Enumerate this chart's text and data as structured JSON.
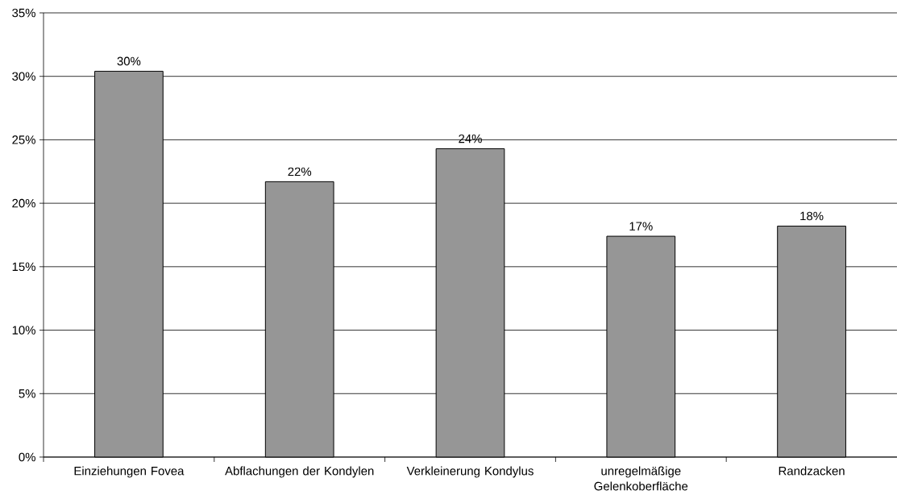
{
  "chart_data": {
    "type": "bar",
    "categories": [
      "Einziehungen Fovea",
      "Abflachungen der Kondylen",
      "Verkleinerung Kondylus",
      "unregelmäßige Gelenkoberfläche",
      "Randzacken"
    ],
    "values": [
      30.4,
      21.7,
      24.3,
      17.4,
      18.2
    ],
    "value_labels": [
      "30%",
      "22%",
      "24%",
      "17%",
      "18%"
    ],
    "color": "#969696",
    "ylim": [
      0,
      35
    ],
    "yticks": [
      {
        "value": 0,
        "label": "0%"
      },
      {
        "value": 5,
        "label": "5%"
      },
      {
        "value": 10,
        "label": "10%"
      },
      {
        "value": 15,
        "label": "15%"
      },
      {
        "value": 20,
        "label": "20%"
      },
      {
        "value": 25,
        "label": "25%"
      },
      {
        "value": 30,
        "label": "30%"
      },
      {
        "value": 35,
        "label": "35%"
      }
    ],
    "grid": "y"
  }
}
